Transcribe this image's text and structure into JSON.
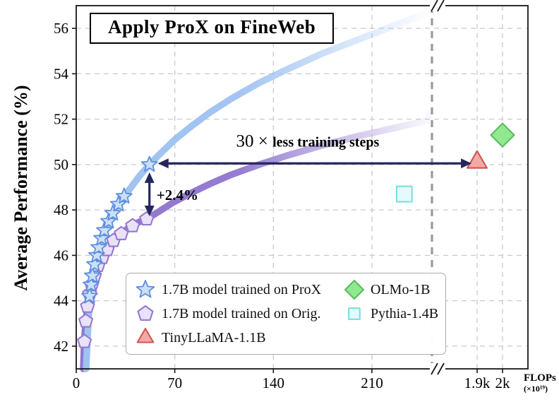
{
  "chart_data": {
    "type": "scatter",
    "title": "Apply ProX on FineWeb",
    "ylabel": "Average Performance (%)",
    "xlabel_unit": {
      "line1": "FLOPs",
      "line2": "(×10¹⁹)"
    },
    "ylim": [
      41,
      57
    ],
    "yticks": [
      42,
      44,
      46,
      48,
      50,
      52,
      54,
      56
    ],
    "xticks": [
      {
        "label": "0",
        "value": 0
      },
      {
        "label": "70",
        "value": 70
      },
      {
        "label": "140",
        "value": 140
      },
      {
        "label": "210",
        "value": 210
      },
      {
        "label": "1.9k",
        "value": 1900
      },
      {
        "label": "2k",
        "value": 2000
      }
    ],
    "grid": "dashed",
    "axis_break_x": true,
    "legend_position": "lower center",
    "colors": {
      "arrow": "#26265e",
      "grid": "#c9c9c9",
      "axis": "#161616",
      "separator": "#9a9a9a"
    },
    "series": [
      {
        "name": "1.7B model trained on ProX",
        "marker": "star",
        "size": 11.5,
        "stroke": "#5d8fdd",
        "fill": "#cbdff9",
        "curve_color": "#9fc2f1",
        "curve": [
          [
            7,
            41.0
          ],
          [
            7.6,
            41.8
          ],
          [
            8.3,
            42.7
          ],
          [
            9.0,
            43.5
          ],
          [
            9.5,
            44.2
          ],
          [
            10.5,
            44.7
          ],
          [
            11.5,
            45.1
          ],
          [
            13,
            45.6
          ],
          [
            14.5,
            46.0
          ],
          [
            16,
            46.35
          ],
          [
            18,
            46.75
          ],
          [
            20,
            47.1
          ],
          [
            23,
            47.5
          ],
          [
            26,
            47.85
          ],
          [
            30,
            48.25
          ],
          [
            34,
            48.6
          ],
          [
            39,
            49.0
          ],
          [
            45,
            49.5
          ],
          [
            52,
            50.0
          ],
          [
            60,
            50.5
          ],
          [
            70,
            51.1
          ],
          [
            82,
            51.7
          ],
          [
            95,
            52.3
          ],
          [
            110,
            52.9
          ],
          [
            130,
            53.6
          ],
          [
            150,
            54.2
          ],
          [
            175,
            54.9
          ],
          [
            200,
            55.5
          ],
          [
            225,
            56.1
          ],
          [
            248,
            56.65
          ]
        ],
        "points": [
          [
            9.5,
            44.2
          ],
          [
            10.5,
            44.7
          ],
          [
            11.5,
            45.1
          ],
          [
            13,
            45.6
          ],
          [
            14.5,
            46.0
          ],
          [
            16,
            46.35
          ],
          [
            18,
            46.75
          ],
          [
            20,
            47.1
          ],
          [
            23,
            47.5
          ],
          [
            26,
            47.85
          ],
          [
            30,
            48.25
          ],
          [
            34,
            48.6
          ],
          [
            52,
            50.0
          ]
        ]
      },
      {
        "name": "1.7B model trained on Orig.",
        "marker": "pentagon",
        "size": 10,
        "stroke": "#9678d2",
        "fill": "#e9e2f8",
        "curve_color": "#8f76cf",
        "curve": [
          [
            5,
            41.0
          ],
          [
            5.5,
            41.9
          ],
          [
            6.1,
            42.6
          ],
          [
            6.8,
            43.1
          ],
          [
            7.6,
            43.55
          ],
          [
            8.5,
            43.95
          ],
          [
            9.5,
            44.3
          ],
          [
            11,
            44.7
          ],
          [
            12.5,
            45.0
          ],
          [
            14,
            45.3
          ],
          [
            16,
            45.6
          ],
          [
            18,
            45.85
          ],
          [
            20.5,
            46.1
          ],
          [
            23,
            46.35
          ],
          [
            26,
            46.6
          ],
          [
            29,
            46.8
          ],
          [
            33,
            47.0
          ],
          [
            37,
            47.2
          ],
          [
            42,
            47.4
          ],
          [
            46,
            47.5
          ],
          [
            50,
            47.6
          ],
          [
            58,
            47.9
          ],
          [
            68,
            48.3
          ],
          [
            80,
            48.7
          ],
          [
            95,
            49.15
          ],
          [
            110,
            49.55
          ],
          [
            130,
            50.0
          ],
          [
            150,
            50.4
          ],
          [
            175,
            50.85
          ],
          [
            200,
            51.25
          ],
          [
            225,
            51.6
          ],
          [
            250,
            51.95
          ],
          [
            268,
            52.2
          ]
        ],
        "points": [
          [
            5.8,
            42.2
          ],
          [
            6.8,
            43.1
          ],
          [
            8,
            43.75
          ],
          [
            9.5,
            44.3
          ],
          [
            11,
            44.7
          ],
          [
            13,
            45.1
          ],
          [
            15.5,
            45.55
          ],
          [
            18.5,
            45.9
          ],
          [
            22,
            46.25
          ],
          [
            26.5,
            46.65
          ],
          [
            32,
            46.95
          ],
          [
            40,
            47.3
          ],
          [
            50,
            47.6
          ]
        ]
      },
      {
        "name": "TinyLLaMA-1.1B",
        "marker": "triangle",
        "size": 16,
        "stroke": "#cd5750",
        "fill": "#f4a9a6",
        "points": [
          [
            1900,
            50.1
          ]
        ]
      },
      {
        "name": "OLMo-1B",
        "marker": "diamond",
        "size": 16.5,
        "stroke": "#5bbd5b",
        "fill": "#90e890",
        "points": [
          [
            2000,
            51.3
          ]
        ]
      },
      {
        "name": "Pythia-1.4B",
        "marker": "square",
        "size": 14,
        "stroke": "#7cdede",
        "fill": "#e4fbfb",
        "points": [
          [
            233,
            48.7
          ]
        ]
      }
    ],
    "annotations": [
      {
        "id": "speedup",
        "arrow": "horizontal",
        "text_math": "30 ×",
        "text": "less training steps",
        "y": 50.05,
        "x_from": 58,
        "x_to": 1878
      },
      {
        "id": "gain",
        "arrow": "vertical",
        "text": "+2.4%",
        "x": 52,
        "y_from": 50.0,
        "y_to": 47.6
      }
    ]
  }
}
